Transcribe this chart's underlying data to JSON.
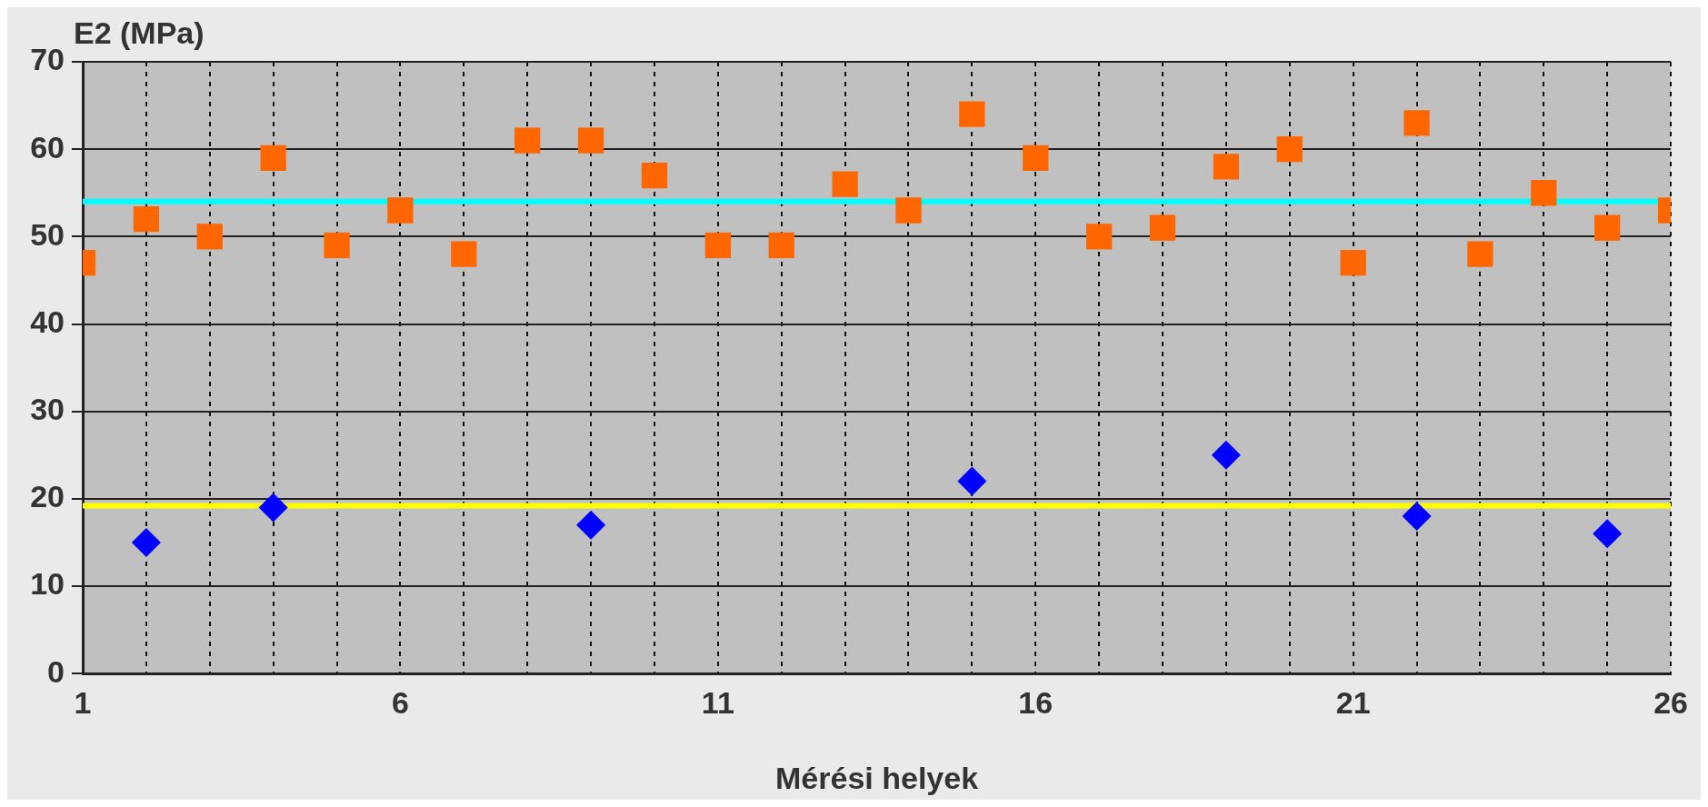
{
  "chart_data": {
    "type": "scatter",
    "ylabel": "E2 (MPa)",
    "xlabel": "Mérési helyek",
    "x": [
      1,
      2,
      3,
      4,
      5,
      6,
      7,
      8,
      9,
      10,
      11,
      12,
      13,
      14,
      15,
      16,
      17,
      18,
      19,
      20,
      21,
      22,
      23,
      24,
      25,
      26
    ],
    "series": [
      {
        "color": "#ff6600",
        "marker": "square",
        "values": [
          47,
          52,
          50,
          59,
          49,
          53,
          48,
          61,
          61,
          57,
          49,
          49,
          56,
          53,
          64,
          59,
          50,
          51,
          58,
          60,
          47,
          63,
          48,
          55,
          51,
          53
        ]
      },
      {
        "color": "#0000ff",
        "marker": "diamond",
        "values": [
          null,
          15,
          null,
          19,
          null,
          null,
          null,
          null,
          17,
          null,
          null,
          null,
          null,
          null,
          22,
          null,
          null,
          null,
          25,
          null,
          null,
          18,
          null,
          null,
          16,
          null
        ]
      }
    ],
    "xlim": [
      1,
      26
    ],
    "xticks": [
      1,
      {
        "value": 2,
        "label": null
      },
      {
        "value": 3,
        "label": null
      },
      {
        "value": 4,
        "label": null
      },
      {
        "value": 5,
        "label": null
      },
      6,
      {
        "value": 7,
        "label": null
      },
      {
        "value": 8,
        "label": null
      },
      {
        "value": 9,
        "label": null
      },
      {
        "value": 10,
        "label": null
      },
      11,
      {
        "value": 12,
        "label": null
      },
      {
        "value": 13,
        "label": null
      },
      {
        "value": 14,
        "label": null
      },
      {
        "value": 15,
        "label": null
      },
      16,
      {
        "value": 17,
        "label": null
      },
      {
        "value": 18,
        "label": null
      },
      {
        "value": 19,
        "label": null
      },
      {
        "value": 20,
        "label": null
      },
      21,
      {
        "value": 22,
        "label": null
      },
      {
        "value": 23,
        "label": null
      },
      {
        "value": 24,
        "label": null
      },
      {
        "value": 25,
        "label": null
      },
      26
    ],
    "ylim": [
      0,
      70
    ],
    "yticks": [
      0,
      10,
      20,
      30,
      40,
      50,
      60,
      70
    ],
    "ref_lines": [
      {
        "axis": "y",
        "value": 54,
        "color": "#00ffff"
      },
      {
        "axis": "y",
        "value": 19.2,
        "color": "#ffff00"
      }
    ],
    "grid": true,
    "legend": false
  }
}
